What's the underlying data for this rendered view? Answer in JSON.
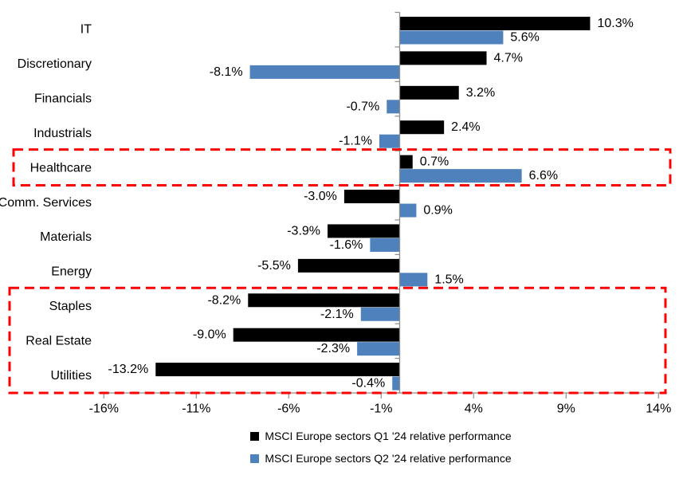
{
  "chart_data": {
    "type": "bar",
    "orientation": "horizontal",
    "categories": [
      "IT",
      "Discretionary",
      "Financials",
      "Industrials",
      "Healthcare",
      "Comm. Services",
      "Materials",
      "Energy",
      "Staples",
      "Real Estate",
      "Utilities"
    ],
    "series": [
      {
        "name": "MSCI Europe sectors Q1 '24 relative performance",
        "color": "#000000",
        "values": [
          10.3,
          4.7,
          3.2,
          2.4,
          0.7,
          -3.0,
          -3.9,
          -5.5,
          -8.2,
          -9.0,
          -13.2
        ],
        "labels": [
          "10.3%",
          "4.7%",
          "3.2%",
          "2.4%",
          "0.7%",
          "-3.0%",
          "-3.9%",
          "-5.5%",
          "-8.2%",
          "-9.0%",
          "-13.2%"
        ]
      },
      {
        "name": "MSCI Europe sectors Q2 '24 relative performance",
        "color": "#4F81BD",
        "values": [
          5.6,
          -8.1,
          -0.7,
          -1.1,
          6.6,
          0.9,
          -1.6,
          1.5,
          -2.1,
          -2.3,
          -0.4
        ],
        "labels": [
          "5.6%",
          "-8.1%",
          "-0.7%",
          "-1.1%",
          "6.6%",
          "0.9%",
          "-1.6%",
          "1.5%",
          "-2.1%",
          "-2.3%",
          "-0.4%"
        ]
      }
    ],
    "xlim": [
      -16,
      14
    ],
    "xticks": [
      {
        "value": -16,
        "label": "-16%"
      },
      {
        "value": -11,
        "label": "-11%"
      },
      {
        "value": -6,
        "label": "-6%"
      },
      {
        "value": -1,
        "label": "-1%"
      },
      {
        "value": 4,
        "label": "4%"
      },
      {
        "value": 9,
        "label": "9%"
      },
      {
        "value": 14,
        "label": "14%"
      }
    ],
    "grid": false,
    "legend_position": "bottom",
    "axis_color": "#8C8C8C",
    "text_color": "#000000",
    "highlights": [
      {
        "name": "highlight-box-healthcare",
        "from": "Healthcare",
        "to": "Healthcare",
        "color": "#FF0000",
        "style": "dashed"
      },
      {
        "name": "highlight-box-defensives",
        "from": "Staples",
        "to": "Utilities",
        "color": "#FF0000",
        "style": "dashed"
      }
    ]
  }
}
